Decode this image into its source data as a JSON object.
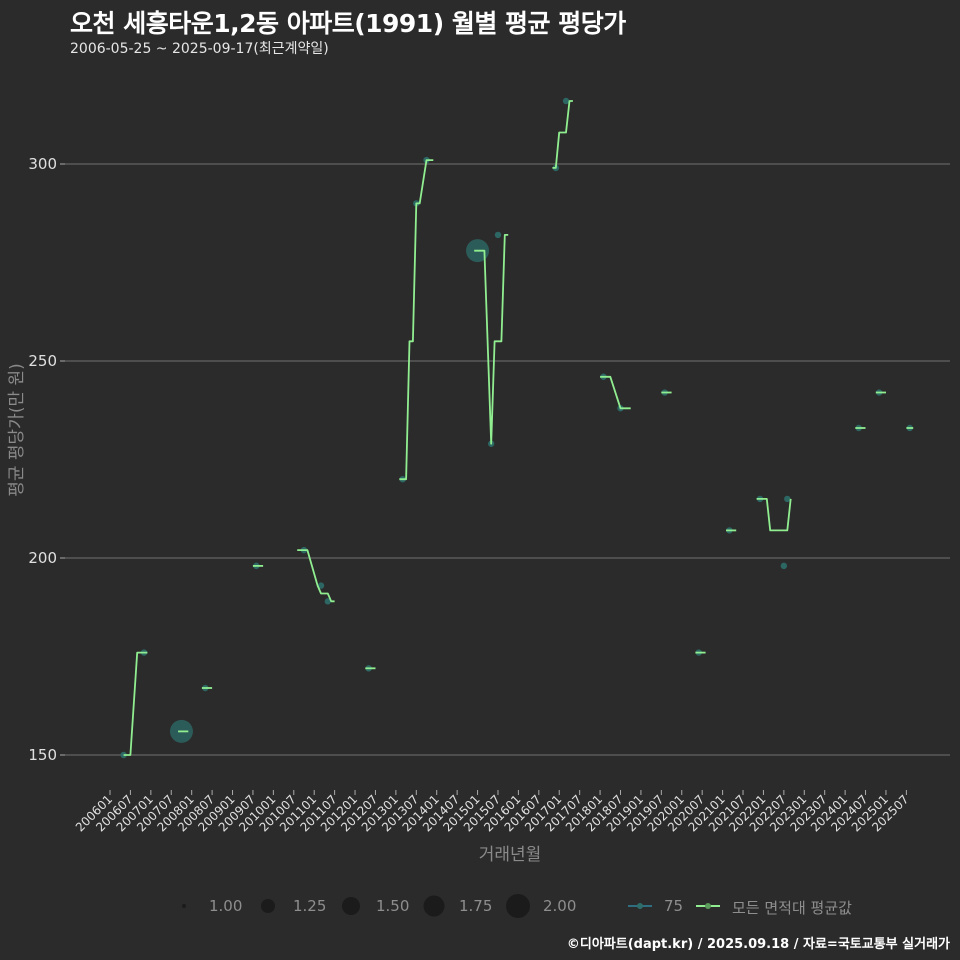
{
  "header": {
    "title": "오천 세흥타운1,2동 아파트(1991) 월별 평균 평당가",
    "subtitle": "2006-05-25 ~ 2025-09-17(최근계약일)"
  },
  "footer": {
    "credit": "©디아파트(dapt.kr) / 2025.09.18 / 자료=국토교통부 실거래가"
  },
  "legend": {
    "size_title": "",
    "sizes": [
      "1.00",
      "1.25",
      "1.50",
      "1.75",
      "2.00"
    ],
    "series_75": "75",
    "series_all": "모든 면적대 평균값"
  },
  "colors": {
    "background": "#2b2b2b",
    "grid": "#707070",
    "line_avg": "#90ee90",
    "point_75": "#2e6e6a"
  },
  "chart_data": {
    "type": "line",
    "title": "오천 세흥타운1,2동 아파트(1991) 월별 평균 평당가",
    "subtitle": "2006-05-25 ~ 2025-09-17(최근계약일)",
    "xlabel": "거래년월",
    "ylabel": "평균 평당가(만 원)",
    "ylim": [
      140,
      322
    ],
    "yticks": [
      150,
      200,
      250,
      300
    ],
    "xticks": [
      "200601",
      "200607",
      "200701",
      "200707",
      "200801",
      "200807",
      "200901",
      "200907",
      "201001",
      "201007",
      "201101",
      "201107",
      "201201",
      "201207",
      "201301",
      "201307",
      "201401",
      "201407",
      "201501",
      "201507",
      "201601",
      "201607",
      "201701",
      "201707",
      "201801",
      "201807",
      "201901",
      "201907",
      "202001",
      "202007",
      "202101",
      "202107",
      "202201",
      "202207",
      "202301",
      "202307",
      "202401",
      "202407",
      "202501",
      "202507"
    ],
    "grid": "horizontal",
    "legend_position": "bottom",
    "series": [
      {
        "name": "75",
        "kind": "points (size = count)",
        "points": [
          {
            "x": "200605",
            "y": 150,
            "size": 1
          },
          {
            "x": "200611",
            "y": 176,
            "size": 1
          },
          {
            "x": "200710",
            "y": 156,
            "size": 2
          },
          {
            "x": "200805",
            "y": 167,
            "size": 1
          },
          {
            "x": "200908",
            "y": 198,
            "size": 1
          },
          {
            "x": "201010",
            "y": 202,
            "size": 1
          },
          {
            "x": "201103",
            "y": 193,
            "size": 1
          },
          {
            "x": "201105",
            "y": 189,
            "size": 1
          },
          {
            "x": "201205",
            "y": 172,
            "size": 1
          },
          {
            "x": "201303",
            "y": 220,
            "size": 1
          },
          {
            "x": "201307",
            "y": 290,
            "size": 1
          },
          {
            "x": "201310",
            "y": 301,
            "size": 1
          },
          {
            "x": "201501",
            "y": 278,
            "size": 2
          },
          {
            "x": "201505",
            "y": 229,
            "size": 1
          },
          {
            "x": "201507",
            "y": 282,
            "size": 1
          },
          {
            "x": "201612",
            "y": 299,
            "size": 1
          },
          {
            "x": "201703",
            "y": 316,
            "size": 1
          },
          {
            "x": "201802",
            "y": 246,
            "size": 1
          },
          {
            "x": "201807",
            "y": 238,
            "size": 1
          },
          {
            "x": "201908",
            "y": 242,
            "size": 1
          },
          {
            "x": "202006",
            "y": 176,
            "size": 1
          },
          {
            "x": "202103",
            "y": 207,
            "size": 1
          },
          {
            "x": "202112",
            "y": 215,
            "size": 1
          },
          {
            "x": "202207",
            "y": 198,
            "size": 1
          },
          {
            "x": "202208",
            "y": 215,
            "size": 1
          },
          {
            "x": "202405",
            "y": 233,
            "size": 1
          },
          {
            "x": "202411",
            "y": 242,
            "size": 1
          },
          {
            "x": "202508",
            "y": 233,
            "size": 1
          }
        ]
      },
      {
        "name": "모든 면적대 평균값",
        "kind": "line",
        "segments": [
          [
            [
              "200605",
              150
            ],
            [
              "200607",
              150
            ],
            [
              "200609",
              176
            ],
            [
              "200612",
              176
            ]
          ],
          [
            [
              "200709",
              156
            ],
            [
              "200712",
              156
            ]
          ],
          [
            [
              "200804",
              167
            ],
            [
              "200807",
              167
            ]
          ],
          [
            [
              "200907",
              198
            ],
            [
              "200910",
              198
            ]
          ],
          [
            [
              "201008",
              202
            ],
            [
              "201011",
              202
            ],
            [
              "201102",
              193
            ],
            [
              "201103",
              191
            ],
            [
              "201105",
              191
            ],
            [
              "201106",
              189
            ],
            [
              "201107",
              189
            ]
          ],
          [
            [
              "201204",
              172
            ],
            [
              "201207",
              172
            ]
          ],
          [
            [
              "201302",
              220
            ],
            [
              "201304",
              220
            ],
            [
              "201305",
              255
            ],
            [
              "201306",
              255
            ],
            [
              "201307",
              290
            ],
            [
              "201308",
              290
            ],
            [
              "201310",
              301
            ],
            [
              "201312",
              301
            ]
          ],
          [
            [
              "201412",
              278
            ],
            [
              "201503",
              278
            ],
            [
              "201505",
              229
            ],
            [
              "201506",
              255
            ],
            [
              "201508",
              255
            ],
            [
              "201509",
              282
            ],
            [
              "201510",
              282
            ]
          ],
          [
            [
              "201611",
              299
            ],
            [
              "201612",
              299
            ],
            [
              "201701",
              308
            ],
            [
              "201703",
              308
            ],
            [
              "201704",
              316
            ],
            [
              "201705",
              316
            ]
          ],
          [
            [
              "201801",
              246
            ],
            [
              "201804",
              246
            ],
            [
              "201807",
              238
            ],
            [
              "201810",
              238
            ]
          ],
          [
            [
              "201907",
              242
            ],
            [
              "201910",
              242
            ]
          ],
          [
            [
              "202005",
              176
            ],
            [
              "202008",
              176
            ]
          ],
          [
            [
              "202102",
              207
            ],
            [
              "202105",
              207
            ]
          ],
          [
            [
              "202111",
              215
            ],
            [
              "202202",
              215
            ],
            [
              "202203",
              207
            ],
            [
              "202208",
              207
            ],
            [
              "202209",
              215
            ]
          ],
          [
            [
              "202404",
              233
            ],
            [
              "202407",
              233
            ]
          ],
          [
            [
              "202410",
              242
            ],
            [
              "202501",
              242
            ]
          ],
          [
            [
              "202507",
              233
            ],
            [
              "202509",
              233
            ]
          ]
        ]
      }
    ]
  }
}
